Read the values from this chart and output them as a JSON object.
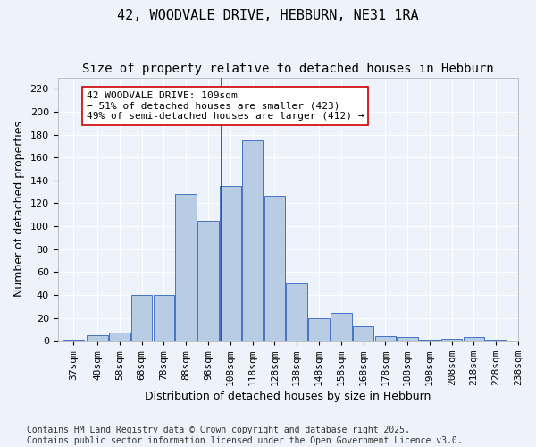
{
  "title": "42, WOODVALE DRIVE, HEBBURN, NE31 1RA",
  "subtitle": "Size of property relative to detached houses in Hebburn",
  "xlabel": "Distribution of detached houses by size in Hebburn",
  "ylabel": "Number of detached properties",
  "bin_labels": [
    "37sqm",
    "48sqm",
    "58sqm",
    "68sqm",
    "78sqm",
    "88sqm",
    "98sqm",
    "108sqm",
    "118sqm",
    "128sqm",
    "138sqm",
    "148sqm",
    "158sqm",
    "168sqm",
    "178sqm",
    "188sqm",
    "198sqm",
    "208sqm",
    "218sqm",
    "228sqm",
    "238sqm"
  ],
  "bin_lefts": [
    37,
    48,
    58,
    68,
    78,
    88,
    98,
    108,
    118,
    128,
    138,
    148,
    158,
    168,
    178,
    188,
    198,
    208,
    218,
    228
  ],
  "bin_width": 10,
  "bar_heights": [
    1,
    5,
    7,
    40,
    40,
    128,
    105,
    135,
    175,
    127,
    50,
    20,
    24,
    13,
    4,
    3,
    1,
    2,
    3,
    1
  ],
  "bar_color": "#b8cce4",
  "bar_edge_color": "#4472c4",
  "bg_color": "#eef3fb",
  "grid_color": "#ffffff",
  "vline_x": 109,
  "vline_color": "#cc0000",
  "annotation_text": "42 WOODVALE DRIVE: 109sqm\n← 51% of detached houses are smaller (423)\n49% of semi-detached houses are larger (412) →",
  "annotation_box_color": "#ffffff",
  "annotation_box_edge": "#cc0000",
  "ylim": [
    0,
    230
  ],
  "yticks": [
    0,
    20,
    40,
    60,
    80,
    100,
    120,
    140,
    160,
    180,
    200,
    220
  ],
  "footer": "Contains HM Land Registry data © Crown copyright and database right 2025.\nContains public sector information licensed under the Open Government Licence v3.0.",
  "title_fontsize": 11,
  "subtitle_fontsize": 10,
  "axis_label_fontsize": 9,
  "tick_fontsize": 8,
  "annotation_fontsize": 8,
  "footer_fontsize": 7
}
